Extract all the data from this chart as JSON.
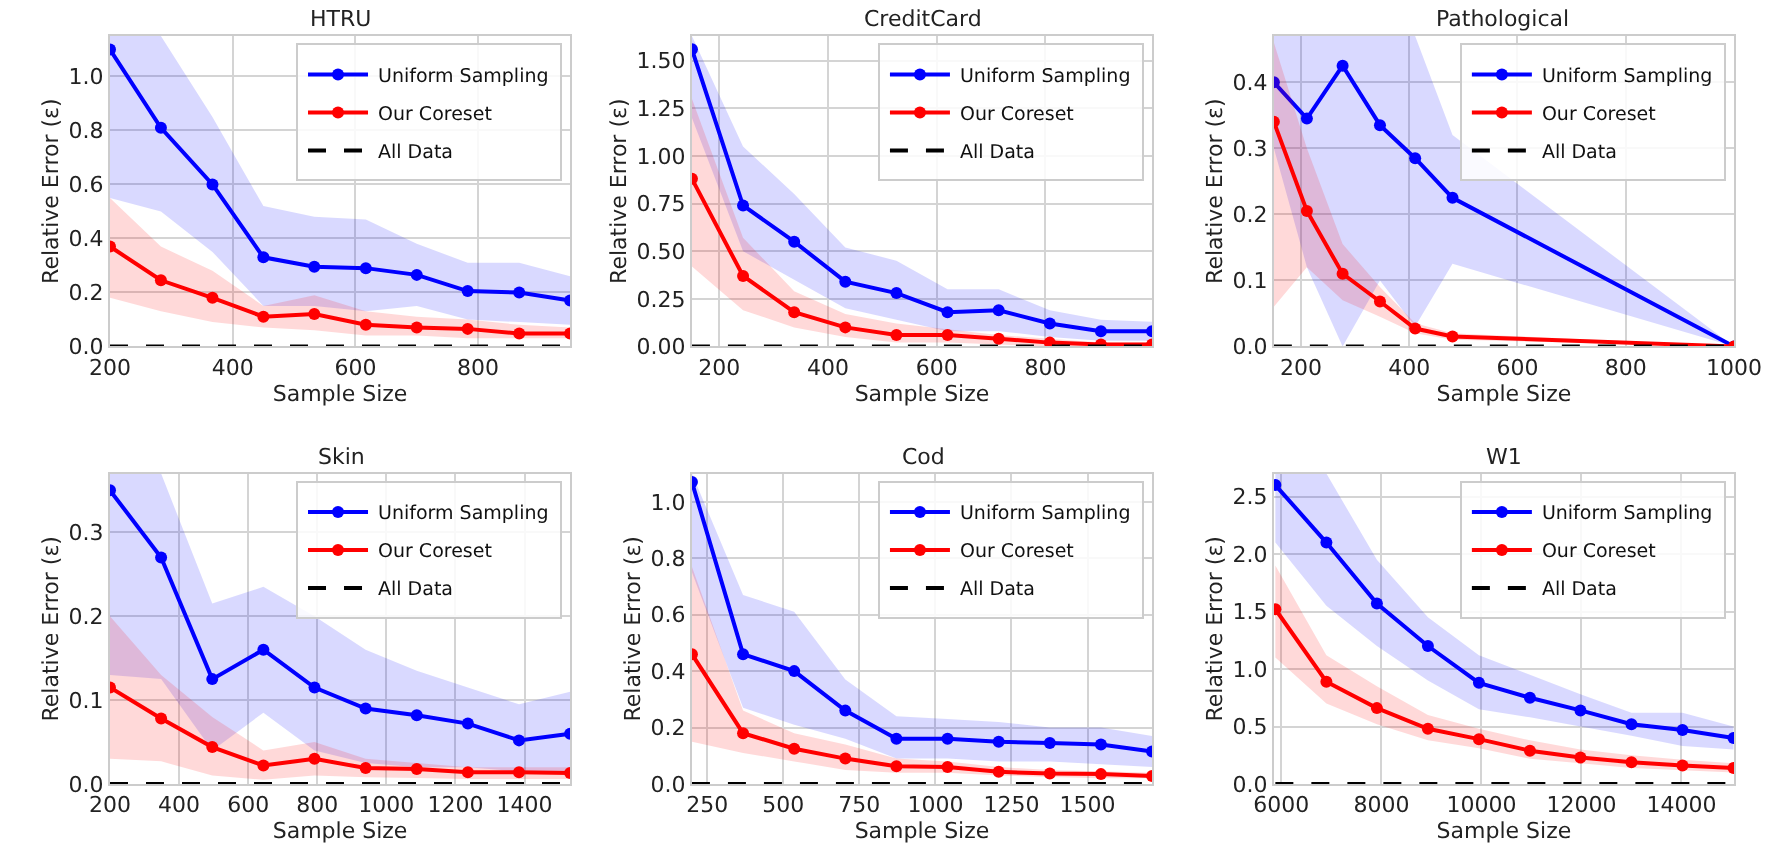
{
  "chart_data": [
    {
      "type": "line",
      "title": "HTRU",
      "xlabel": "Sample Size",
      "ylabel": "Relative Error (ε)",
      "grid": true,
      "legend": "top right",
      "marker": "circle",
      "x": [
        200,
        283,
        367,
        450,
        533,
        617,
        700,
        783,
        867,
        950
      ],
      "xlim": [
        200,
        950
      ],
      "xticks": [
        200,
        400,
        600,
        800
      ],
      "ylim": [
        0,
        1.15
      ],
      "yticks": [
        {
          "value": 0,
          "label": "0.0"
        },
        {
          "value": 0.2,
          "label": "0.2"
        },
        {
          "value": 0.4,
          "label": "0.4"
        },
        {
          "value": 0.6,
          "label": "0.6"
        },
        {
          "value": 0.8,
          "label": "0.8"
        },
        {
          "value": 1.0,
          "label": "1.0"
        }
      ],
      "series": [
        {
          "name": "Uniform Sampling",
          "color": "#0000ff",
          "values": [
            1.1,
            0.81,
            0.6,
            0.33,
            0.295,
            0.29,
            0.265,
            0.205,
            0.2,
            0.17
          ],
          "upper": [
            1.15,
            1.15,
            0.85,
            0.52,
            0.48,
            0.47,
            0.38,
            0.31,
            0.31,
            0.26
          ],
          "lower": [
            0.55,
            0.5,
            0.35,
            0.15,
            0.15,
            0.13,
            0.15,
            0.1,
            0.09,
            0.08
          ]
        },
        {
          "name": "Our Coreset",
          "color": "#ff0000",
          "values": [
            0.37,
            0.245,
            0.18,
            0.11,
            0.12,
            0.08,
            0.07,
            0.065,
            0.048,
            0.048
          ],
          "upper": [
            0.55,
            0.37,
            0.28,
            0.15,
            0.19,
            0.13,
            0.11,
            0.1,
            0.08,
            0.07
          ],
          "lower": [
            0.18,
            0.13,
            0.09,
            0.07,
            0.06,
            0.04,
            0.04,
            0.03,
            0.03,
            0.03
          ]
        },
        {
          "name": "All Data",
          "color": "#000000",
          "line_style": "dashed",
          "marker": "none",
          "values": [
            0,
            0,
            0,
            0,
            0,
            0,
            0,
            0,
            0,
            0
          ]
        }
      ]
    },
    {
      "type": "line",
      "title": "CreditCard",
      "xlabel": "Sample Size",
      "ylabel": "Relative Error (ε)",
      "grid": true,
      "legend": "top right",
      "marker": "circle",
      "x": [
        150,
        244,
        338,
        432,
        526,
        620,
        714,
        808,
        902,
        996
      ],
      "xlim": [
        150,
        996
      ],
      "xticks": [
        200,
        400,
        600,
        800
      ],
      "ylim": [
        0,
        1.63
      ],
      "yticks": [
        {
          "value": 0,
          "label": "0.00"
        },
        {
          "value": 0.25,
          "label": "0.25"
        },
        {
          "value": 0.5,
          "label": "0.50"
        },
        {
          "value": 0.75,
          "label": "0.75"
        },
        {
          "value": 1.0,
          "label": "1.00"
        },
        {
          "value": 1.25,
          "label": "1.25"
        },
        {
          "value": 1.5,
          "label": "1.50"
        }
      ],
      "series": [
        {
          "name": "Uniform Sampling",
          "color": "#0000ff",
          "values": [
            1.56,
            0.74,
            0.55,
            0.34,
            0.28,
            0.18,
            0.19,
            0.12,
            0.08,
            0.08
          ],
          "upper": [
            1.63,
            1.05,
            0.8,
            0.52,
            0.45,
            0.3,
            0.3,
            0.19,
            0.14,
            0.13
          ],
          "lower": [
            1.2,
            0.5,
            0.35,
            0.2,
            0.14,
            0.08,
            0.08,
            0.05,
            0.03,
            0.03
          ]
        },
        {
          "name": "Our Coreset",
          "color": "#ff0000",
          "values": [
            0.88,
            0.37,
            0.18,
            0.1,
            0.06,
            0.06,
            0.04,
            0.02,
            0.01,
            0.01
          ],
          "upper": [
            1.3,
            0.57,
            0.29,
            0.17,
            0.12,
            0.09,
            0.06,
            0.04,
            0.02,
            0.02
          ],
          "lower": [
            0.42,
            0.19,
            0.1,
            0.05,
            0.02,
            0.02,
            0.01,
            0.0,
            0.0,
            0.0
          ]
        },
        {
          "name": "All Data",
          "color": "#000000",
          "line_style": "dashed",
          "marker": "none",
          "values": [
            0,
            0,
            0,
            0,
            0,
            0,
            0,
            0,
            0,
            0
          ]
        }
      ]
    },
    {
      "type": "line",
      "title": "Pathological",
      "xlabel": "Sample Size",
      "ylabel": "Relative Error (ε)",
      "grid": true,
      "legend": "top right",
      "marker": "circle",
      "x": [
        150,
        211,
        277,
        346,
        411,
        480,
        1000
      ],
      "xlim": [
        150,
        1000
      ],
      "xticks": [
        200,
        400,
        600,
        800,
        1000
      ],
      "ylim": [
        0,
        0.47
      ],
      "yticks": [
        {
          "value": 0,
          "label": "0.0"
        },
        {
          "value": 0.1,
          "label": "0.1"
        },
        {
          "value": 0.2,
          "label": "0.2"
        },
        {
          "value": 0.3,
          "label": "0.3"
        },
        {
          "value": 0.4,
          "label": "0.4"
        }
      ],
      "series": [
        {
          "name": "Uniform Sampling",
          "color": "#0000ff",
          "values": [
            0.4,
            0.345,
            0.425,
            0.335,
            0.285,
            0.225,
            0.0
          ],
          "upper": [
            0.47,
            0.47,
            0.47,
            0.47,
            0.47,
            0.32,
            0.0
          ],
          "lower": [
            0.3,
            0.12,
            0.0,
            0.1,
            0.03,
            0.125,
            0.0
          ]
        },
        {
          "name": "Our Coreset",
          "color": "#ff0000",
          "values": [
            0.34,
            0.205,
            0.11,
            0.068,
            0.027,
            0.015,
            0.0
          ],
          "upper": [
            0.46,
            0.3,
            0.155,
            0.09,
            0.035,
            0.02,
            0.0
          ],
          "lower": [
            0.06,
            0.12,
            0.07,
            0.045,
            0.02,
            0.01,
            0.0
          ]
        },
        {
          "name": "All Data",
          "color": "#000000",
          "line_style": "dashed",
          "marker": "none",
          "values": [
            0,
            0,
            0,
            0,
            0,
            0,
            0
          ]
        }
      ]
    },
    {
      "type": "line",
      "title": "Skin",
      "xlabel": "Sample Size",
      "ylabel": "Relative Error (ε)",
      "grid": true,
      "legend": "top right",
      "marker": "circle",
      "x": [
        200,
        348,
        496,
        644,
        792,
        940,
        1088,
        1236,
        1384,
        1532
      ],
      "xlim": [
        200,
        1532
      ],
      "xticks": [
        200,
        400,
        600,
        800,
        1000,
        1200,
        1400
      ],
      "ylim": [
        0,
        0.37
      ],
      "yticks": [
        {
          "value": 0,
          "label": "0.0"
        },
        {
          "value": 0.1,
          "label": "0.1"
        },
        {
          "value": 0.2,
          "label": "0.2"
        },
        {
          "value": 0.3,
          "label": "0.3"
        }
      ],
      "series": [
        {
          "name": "Uniform Sampling",
          "color": "#0000ff",
          "values": [
            0.35,
            0.27,
            0.125,
            0.16,
            0.115,
            0.09,
            0.082,
            0.072,
            0.052,
            0.06
          ],
          "upper": [
            0.37,
            0.37,
            0.215,
            0.235,
            0.2,
            0.16,
            0.135,
            0.115,
            0.095,
            0.11
          ],
          "lower": [
            0.13,
            0.125,
            0.04,
            0.085,
            0.04,
            0.025,
            0.02,
            0.02,
            0.015,
            0.015
          ]
        },
        {
          "name": "Our Coreset",
          "color": "#ff0000",
          "values": [
            0.115,
            0.078,
            0.044,
            0.022,
            0.03,
            0.019,
            0.018,
            0.014,
            0.014,
            0.013
          ],
          "upper": [
            0.2,
            0.13,
            0.08,
            0.04,
            0.05,
            0.03,
            0.025,
            0.02,
            0.02,
            0.02
          ],
          "lower": [
            0.03,
            0.027,
            0.01,
            0.005,
            0.01,
            0.008,
            0.007,
            0.006,
            0.006,
            0.006
          ]
        },
        {
          "name": "All Data",
          "color": "#000000",
          "line_style": "dashed",
          "marker": "none",
          "values": [
            0,
            0,
            0,
            0,
            0,
            0,
            0,
            0,
            0,
            0
          ]
        }
      ]
    },
    {
      "type": "line",
      "title": "Cod",
      "xlabel": "Sample Size",
      "ylabel": "Relative Error (ε)",
      "grid": true,
      "legend": "top right",
      "marker": "circle",
      "x": [
        200,
        368,
        536,
        704,
        872,
        1040,
        1208,
        1376,
        1544,
        1712
      ],
      "xlim": [
        200,
        1712
      ],
      "xticks": [
        250,
        500,
        750,
        1000,
        1250,
        1500
      ],
      "ylim": [
        0,
        1.1
      ],
      "yticks": [
        {
          "value": 0,
          "label": "0.0"
        },
        {
          "value": 0.2,
          "label": "0.2"
        },
        {
          "value": 0.4,
          "label": "0.4"
        },
        {
          "value": 0.6,
          "label": "0.6"
        },
        {
          "value": 0.8,
          "label": "0.8"
        },
        {
          "value": 1.0,
          "label": "1.0"
        }
      ],
      "series": [
        {
          "name": "Uniform Sampling",
          "color": "#0000ff",
          "values": [
            1.07,
            0.46,
            0.4,
            0.26,
            0.16,
            0.16,
            0.15,
            0.145,
            0.14,
            0.115
          ],
          "upper": [
            1.1,
            0.67,
            0.61,
            0.37,
            0.24,
            0.23,
            0.22,
            0.2,
            0.2,
            0.17
          ],
          "lower": [
            0.75,
            0.27,
            0.21,
            0.16,
            0.09,
            0.09,
            0.08,
            0.08,
            0.07,
            0.06
          ]
        },
        {
          "name": "Our Coreset",
          "color": "#ff0000",
          "values": [
            0.46,
            0.18,
            0.125,
            0.09,
            0.063,
            0.06,
            0.043,
            0.037,
            0.035,
            0.028
          ],
          "upper": [
            0.77,
            0.26,
            0.18,
            0.14,
            0.09,
            0.08,
            0.06,
            0.05,
            0.045,
            0.04
          ],
          "lower": [
            0.15,
            0.11,
            0.08,
            0.05,
            0.04,
            0.04,
            0.03,
            0.025,
            0.02,
            0.02
          ]
        },
        {
          "name": "All Data",
          "color": "#000000",
          "line_style": "dashed",
          "marker": "none",
          "values": [
            0,
            0,
            0,
            0,
            0,
            0,
            0,
            0,
            0,
            0
          ]
        }
      ]
    },
    {
      "type": "line",
      "title": "W1",
      "xlabel": "Sample Size",
      "ylabel": "Relative Error (ε)",
      "grid": true,
      "legend": "top right",
      "marker": "circle",
      "x": [
        5880,
        6900,
        7910,
        8930,
        9950,
        10970,
        11980,
        13000,
        14020,
        15040
      ],
      "xlim": [
        5850,
        15050
      ],
      "xticks": [
        6000,
        8000,
        10000,
        12000,
        14000
      ],
      "ylim": [
        0,
        2.7
      ],
      "yticks": [
        {
          "value": 0,
          "label": "0.0"
        },
        {
          "value": 0.5,
          "label": "0.5"
        },
        {
          "value": 1.0,
          "label": "1.0"
        },
        {
          "value": 1.5,
          "label": "1.5"
        },
        {
          "value": 2.0,
          "label": "2.0"
        },
        {
          "value": 2.5,
          "label": "2.5"
        }
      ],
      "series": [
        {
          "name": "Uniform Sampling",
          "color": "#0000ff",
          "values": [
            2.6,
            2.1,
            1.57,
            1.2,
            0.88,
            0.75,
            0.64,
            0.52,
            0.47,
            0.4
          ],
          "upper": [
            2.7,
            2.7,
            1.95,
            1.45,
            1.12,
            0.95,
            0.78,
            0.62,
            0.62,
            0.5
          ],
          "lower": [
            2.1,
            1.55,
            1.2,
            0.9,
            0.65,
            0.58,
            0.5,
            0.42,
            0.33,
            0.3
          ]
        },
        {
          "name": "Our Coreset",
          "color": "#ff0000",
          "values": [
            1.52,
            0.89,
            0.66,
            0.48,
            0.39,
            0.29,
            0.23,
            0.19,
            0.16,
            0.14
          ],
          "upper": [
            1.9,
            1.12,
            0.85,
            0.6,
            0.48,
            0.38,
            0.3,
            0.25,
            0.21,
            0.18
          ],
          "lower": [
            1.1,
            0.7,
            0.52,
            0.38,
            0.31,
            0.22,
            0.18,
            0.14,
            0.12,
            0.1
          ]
        },
        {
          "name": "All Data",
          "color": "#000000",
          "line_style": "dashed",
          "marker": "none",
          "values": [
            0,
            0,
            0,
            0,
            0,
            0,
            0,
            0,
            0,
            0
          ]
        }
      ]
    }
  ]
}
